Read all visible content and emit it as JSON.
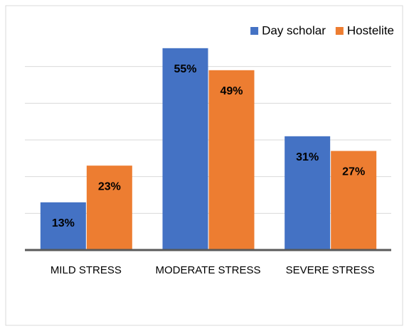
{
  "chart_data": {
    "type": "bar",
    "categories": [
      "MILD STRESS",
      "MODERATE STRESS",
      "SEVERE STRESS"
    ],
    "series": [
      {
        "name": "Day scholar",
        "color": "#4472c4",
        "values": [
          13,
          55,
          31
        ],
        "value_labels": [
          "13%",
          "55%",
          "31%"
        ]
      },
      {
        "name": "Hostelite",
        "color": "#ed7d31",
        "values": [
          23,
          49,
          27
        ],
        "value_labels": [
          "23%",
          "49%",
          "27%"
        ]
      }
    ],
    "ylim": [
      0,
      60
    ],
    "yticks": [
      0,
      10,
      20,
      30,
      40,
      50
    ],
    "grid": true,
    "legend": "top-right"
  }
}
